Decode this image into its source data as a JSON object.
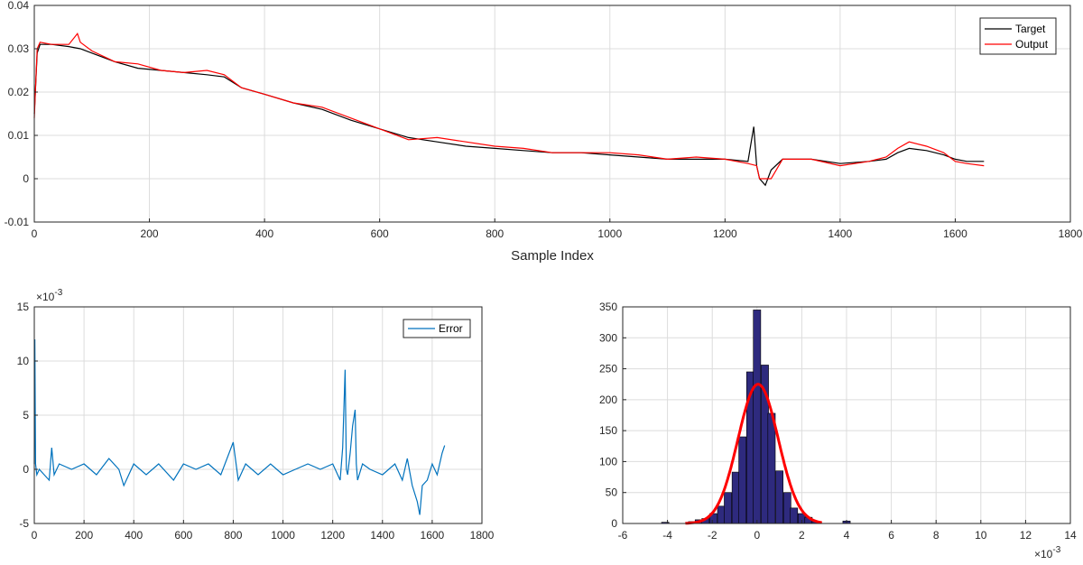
{
  "chart_data": [
    {
      "id": "top",
      "type": "line",
      "xlabel": "Sample Index",
      "ylabel": "",
      "xlim": [
        0,
        1800
      ],
      "ylim": [
        -0.01,
        0.04
      ],
      "xticks": [
        0,
        200,
        400,
        600,
        800,
        1000,
        1200,
        1400,
        1600,
        1800
      ],
      "yticks": [
        -0.01,
        0,
        0.01,
        0.02,
        0.03,
        0.04
      ],
      "ytick_labels": [
        "-0.01",
        "0",
        "0.01",
        "0.02",
        "0.03",
        "0.04"
      ],
      "grid": true,
      "legend": "top-right",
      "series": [
        {
          "name": "Target",
          "color": "#000000",
          "x": [
            0,
            5,
            10,
            30,
            60,
            80,
            100,
            140,
            180,
            220,
            260,
            300,
            330,
            360,
            400,
            450,
            500,
            550,
            600,
            650,
            700,
            750,
            800,
            850,
            900,
            950,
            1000,
            1050,
            1100,
            1150,
            1200,
            1240,
            1250,
            1255,
            1260,
            1270,
            1280,
            1300,
            1350,
            1400,
            1450,
            1480,
            1500,
            1520,
            1550,
            1580,
            1600,
            1620,
            1650
          ],
          "y": [
            0.015,
            0.029,
            0.031,
            0.031,
            0.0305,
            0.03,
            0.029,
            0.027,
            0.0255,
            0.025,
            0.0245,
            0.024,
            0.0235,
            0.021,
            0.0195,
            0.0175,
            0.016,
            0.0135,
            0.0115,
            0.0095,
            0.0085,
            0.0075,
            0.007,
            0.0065,
            0.006,
            0.006,
            0.0055,
            0.005,
            0.0045,
            0.0045,
            0.0045,
            0.004,
            0.012,
            0.003,
            0.0,
            -0.0015,
            0.002,
            0.0045,
            0.0045,
            0.0035,
            0.004,
            0.0045,
            0.006,
            0.007,
            0.0065,
            0.0055,
            0.0045,
            0.004,
            0.004
          ]
        },
        {
          "name": "Output",
          "color": "#ff0000",
          "x": [
            0,
            5,
            10,
            30,
            60,
            75,
            80,
            100,
            140,
            180,
            220,
            260,
            300,
            330,
            360,
            400,
            450,
            500,
            550,
            600,
            650,
            700,
            750,
            800,
            850,
            900,
            950,
            1000,
            1050,
            1100,
            1150,
            1200,
            1240,
            1255,
            1260,
            1270,
            1280,
            1300,
            1350,
            1400,
            1450,
            1480,
            1500,
            1520,
            1550,
            1580,
            1600,
            1620,
            1650
          ],
          "y": [
            0.014,
            0.03,
            0.0315,
            0.031,
            0.031,
            0.0335,
            0.0315,
            0.0295,
            0.027,
            0.0265,
            0.025,
            0.0245,
            0.025,
            0.024,
            0.021,
            0.0195,
            0.0175,
            0.0165,
            0.014,
            0.0115,
            0.009,
            0.0095,
            0.0085,
            0.0075,
            0.007,
            0.006,
            0.006,
            0.006,
            0.0055,
            0.0045,
            0.005,
            0.0045,
            0.0035,
            0.003,
            0.0,
            0.0,
            0.0,
            0.0045,
            0.0045,
            0.003,
            0.004,
            0.005,
            0.007,
            0.0085,
            0.0075,
            0.006,
            0.004,
            0.0035,
            0.003
          ]
        }
      ]
    },
    {
      "id": "bottom-left",
      "type": "line",
      "xlabel": "",
      "ylabel": "",
      "xlim": [
        0,
        1800
      ],
      "ylim": [
        -5,
        15
      ],
      "exponent_label": "×10",
      "exponent": "-3",
      "xticks": [
        0,
        200,
        400,
        600,
        800,
        1000,
        1200,
        1400,
        1600,
        1800
      ],
      "yticks": [
        -5,
        0,
        5,
        10,
        15
      ],
      "grid": true,
      "legend": "top-right",
      "series": [
        {
          "name": "Error",
          "color": "#0072bd",
          "x": [
            0,
            2,
            5,
            10,
            20,
            40,
            60,
            70,
            80,
            100,
            150,
            200,
            250,
            300,
            340,
            360,
            400,
            450,
            500,
            560,
            600,
            650,
            700,
            750,
            800,
            820,
            850,
            900,
            950,
            1000,
            1050,
            1100,
            1150,
            1200,
            1230,
            1240,
            1250,
            1255,
            1260,
            1270,
            1280,
            1290,
            1295,
            1300,
            1320,
            1350,
            1400,
            1450,
            1480,
            1500,
            1520,
            1540,
            1550,
            1560,
            1580,
            1600,
            1620,
            1640,
            1650
          ],
          "y": [
            0.5,
            12,
            0.5,
            -0.5,
            0,
            -0.5,
            -1,
            2,
            -0.5,
            0.5,
            0,
            0.5,
            -0.5,
            1,
            0,
            -1.5,
            0.5,
            -0.5,
            0.5,
            -1,
            0.5,
            0,
            0.5,
            -0.5,
            2.5,
            -1,
            0.5,
            -0.5,
            0.5,
            -0.5,
            0,
            0.5,
            0,
            0.5,
            -1,
            2,
            9.2,
            0,
            -0.5,
            1.5,
            4,
            5.5,
            0.5,
            -1,
            0.5,
            0,
            -0.5,
            0.5,
            -1,
            1,
            -1.5,
            -3,
            -4.2,
            -1.5,
            -1,
            0.5,
            -0.5,
            1.5,
            2.2
          ]
        }
      ]
    },
    {
      "id": "bottom-right",
      "type": "bar",
      "xlabel": "",
      "ylabel": "",
      "xlim": [
        -6,
        14
      ],
      "ylim": [
        0,
        350
      ],
      "exponent_label": "×10",
      "exponent": "-3",
      "xticks": [
        -6,
        -4,
        -2,
        0,
        2,
        4,
        6,
        8,
        10,
        12,
        14
      ],
      "yticks": [
        0,
        50,
        100,
        150,
        200,
        250,
        300,
        350
      ],
      "grid": true,
      "bar_color": "#2e2a7e",
      "bin_width": 0.33,
      "bin_centers": [
        -4.1,
        -2.9,
        -2.6,
        -2.3,
        -1.95,
        -1.6,
        -1.3,
        -0.95,
        -0.65,
        -0.3,
        0.0,
        0.35,
        0.65,
        1.0,
        1.35,
        1.65,
        2.0,
        2.3,
        2.6,
        4.0
      ],
      "counts": [
        2,
        3,
        6,
        8,
        16,
        28,
        50,
        83,
        140,
        245,
        345,
        256,
        178,
        85,
        50,
        25,
        16,
        10,
        3,
        4
      ],
      "fit_curve": {
        "color": "#ff0000",
        "mean": 0.05,
        "sigma": 0.9,
        "peak": 225,
        "range": [
          -3.2,
          2.9
        ]
      }
    }
  ]
}
